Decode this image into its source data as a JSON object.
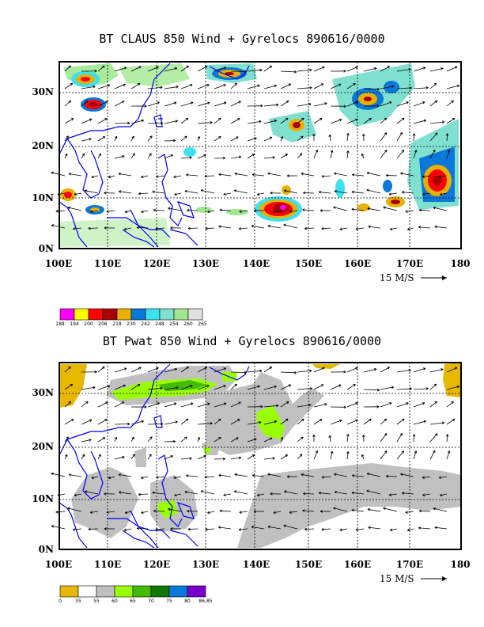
{
  "panels": [
    {
      "title": "BT CLAUS 850 Wind + Gyrelocs 890616/0000",
      "lat_labels": [
        "30N",
        "20N",
        "10N",
        "0N"
      ],
      "lon_labels": [
        "100E",
        "110E",
        "120E",
        "130E",
        "140E",
        "150E",
        "160E",
        "170E",
        "180"
      ],
      "vector_scale": "15 M/S",
      "colorbar": {
        "labels": [
          "188",
          "194",
          "200",
          "206",
          "218",
          "230",
          "242",
          "248",
          "254",
          "260",
          "265"
        ],
        "colors": [
          "#ff00ff",
          "#ffff00",
          "#ff0000",
          "#aa0000",
          "#e8b000",
          "#0a78d8",
          "#40e0f0",
          "#80e0d0",
          "#a0e890",
          "#e0e0e0"
        ]
      }
    },
    {
      "title": "BT Pwat 850 Wind + Gyrelocs 890616/0000",
      "lat_labels": [
        "30N",
        "20N",
        "10N",
        "0N"
      ],
      "lon_labels": [
        "100E",
        "110E",
        "120E",
        "130E",
        "140E",
        "150E",
        "160E",
        "170E",
        "180"
      ],
      "vector_scale": "15 M/S",
      "colorbar": {
        "labels": [
          "0",
          "35",
          "55",
          "60",
          "65",
          "70",
          "75",
          "80",
          "86.85"
        ],
        "colors": [
          "#e6b800",
          "#ffffff",
          "#c0c0c0",
          "#99ff00",
          "#44bb00",
          "#117700",
          "#0a78d8",
          "#7700cc"
        ]
      }
    }
  ],
  "colors": {
    "coastline": "#0000ff",
    "grid": "#000000",
    "frame": "#000000"
  }
}
